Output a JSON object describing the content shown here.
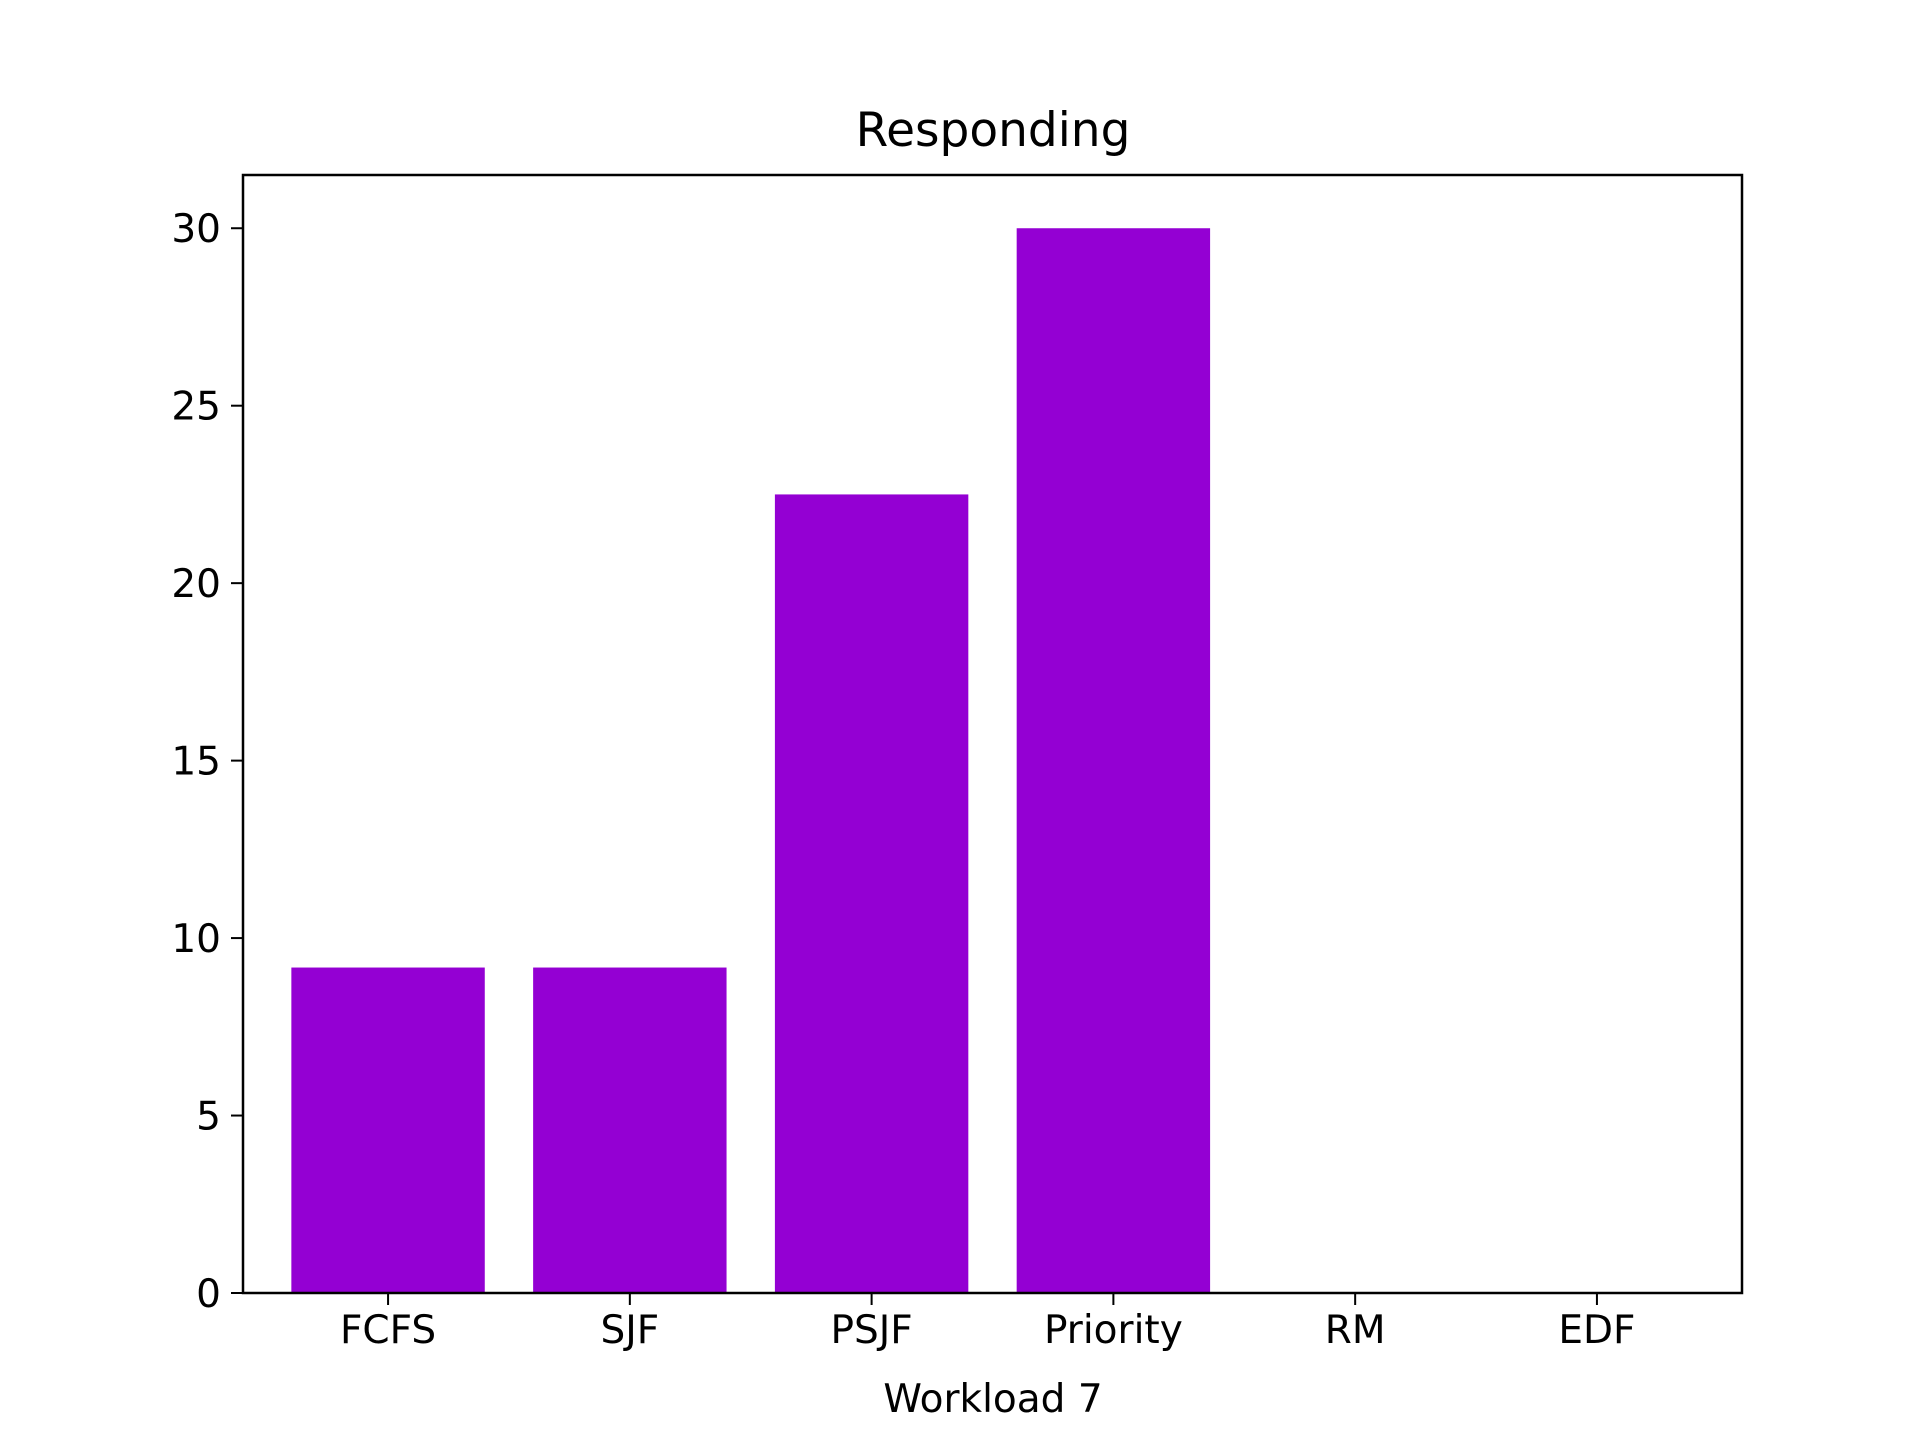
{
  "chart_data": {
    "type": "bar",
    "title": "Responding",
    "xlabel": "Workload 7",
    "ylabel": "",
    "categories": [
      "FCFS",
      "SJF",
      "PSJF",
      "Priority",
      "RM",
      "EDF"
    ],
    "values": [
      9.17,
      9.17,
      22.5,
      30.0,
      0,
      0
    ],
    "ylim": [
      0,
      31.5
    ],
    "yticks": [
      0,
      5,
      10,
      15,
      20,
      25,
      30
    ],
    "bar_color": "#9400d3",
    "grid": false,
    "legend": "none"
  }
}
